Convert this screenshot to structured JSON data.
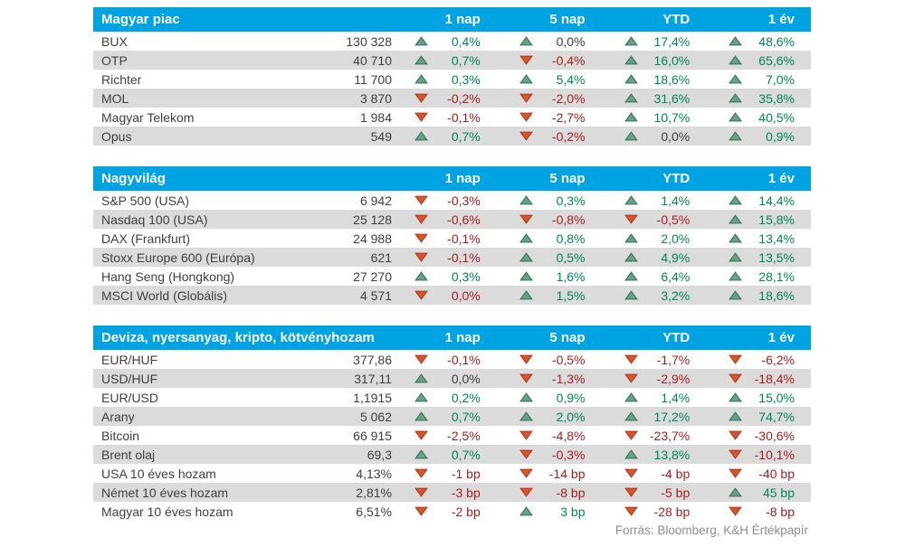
{
  "source_note": "Forrás: Bloomberg, K&H Értékpapír",
  "colors": {
    "header_bg": "#00A3E2",
    "stripe": "#DBDBDB",
    "text": "#3F3F3F",
    "positive_text": "#00855C",
    "negative_text": "#A31F1F",
    "neutral_text": "#3F3F3F",
    "arrow_up_fill": "#67A287",
    "arrow_up_stroke": "#336F55",
    "arrow_down_fill": "#D6552F",
    "arrow_down_stroke": "#AF3517",
    "source_text": "#8E8E8E"
  },
  "chart_data": [
    {
      "type": "table",
      "title": "Magyar piac",
      "columns": [
        "1 nap",
        "5 nap",
        "YTD",
        "1 év"
      ],
      "rows": [
        {
          "name": "BUX",
          "value": "130 328",
          "changes": [
            {
              "dir": "up",
              "text": "0,4%",
              "tone": "pos"
            },
            {
              "dir": "up",
              "text": "0,0%",
              "tone": "neutral"
            },
            {
              "dir": "up",
              "text": "17,4%",
              "tone": "pos"
            },
            {
              "dir": "up",
              "text": "48,6%",
              "tone": "pos"
            }
          ]
        },
        {
          "name": "OTP",
          "value": "40 710",
          "changes": [
            {
              "dir": "up",
              "text": "0,7%",
              "tone": "pos"
            },
            {
              "dir": "down",
              "text": "-0,4%",
              "tone": "neg"
            },
            {
              "dir": "up",
              "text": "16,0%",
              "tone": "pos"
            },
            {
              "dir": "up",
              "text": "65,6%",
              "tone": "pos"
            }
          ]
        },
        {
          "name": "Richter",
          "value": "11 700",
          "changes": [
            {
              "dir": "up",
              "text": "0,3%",
              "tone": "pos"
            },
            {
              "dir": "up",
              "text": "5,4%",
              "tone": "pos"
            },
            {
              "dir": "up",
              "text": "18,6%",
              "tone": "pos"
            },
            {
              "dir": "up",
              "text": "7,0%",
              "tone": "pos"
            }
          ]
        },
        {
          "name": "MOL",
          "value": "3 870",
          "changes": [
            {
              "dir": "down",
              "text": "-0,2%",
              "tone": "neg"
            },
            {
              "dir": "down",
              "text": "-2,0%",
              "tone": "neg"
            },
            {
              "dir": "up",
              "text": "31,6%",
              "tone": "pos"
            },
            {
              "dir": "up",
              "text": "35,8%",
              "tone": "pos"
            }
          ]
        },
        {
          "name": "Magyar Telekom",
          "value": "1 984",
          "changes": [
            {
              "dir": "down",
              "text": "-0,1%",
              "tone": "neg"
            },
            {
              "dir": "down",
              "text": "-2,7%",
              "tone": "neg"
            },
            {
              "dir": "up",
              "text": "10,7%",
              "tone": "pos"
            },
            {
              "dir": "up",
              "text": "40,5%",
              "tone": "pos"
            }
          ]
        },
        {
          "name": "Opus",
          "value": "549",
          "changes": [
            {
              "dir": "up",
              "text": "0,7%",
              "tone": "pos"
            },
            {
              "dir": "down",
              "text": "-0,2%",
              "tone": "neg"
            },
            {
              "dir": "up",
              "text": "0,0%",
              "tone": "neutral"
            },
            {
              "dir": "up",
              "text": "0,9%",
              "tone": "pos"
            }
          ]
        }
      ]
    },
    {
      "type": "table",
      "title": "Nagyvilág",
      "columns": [
        "1 nap",
        "5 nap",
        "YTD",
        "1 év"
      ],
      "rows": [
        {
          "name": "S&P 500 (USA)",
          "value": "6 942",
          "changes": [
            {
              "dir": "down",
              "text": "-0,3%",
              "tone": "neg"
            },
            {
              "dir": "up",
              "text": "0,3%",
              "tone": "pos"
            },
            {
              "dir": "up",
              "text": "1,4%",
              "tone": "pos"
            },
            {
              "dir": "up",
              "text": "14,4%",
              "tone": "pos"
            }
          ]
        },
        {
          "name": "Nasdaq 100 (USA)",
          "value": "25 128",
          "changes": [
            {
              "dir": "down",
              "text": "-0,6%",
              "tone": "neg"
            },
            {
              "dir": "down",
              "text": "-0,8%",
              "tone": "neg"
            },
            {
              "dir": "down",
              "text": "-0,5%",
              "tone": "neg"
            },
            {
              "dir": "up",
              "text": "15,8%",
              "tone": "pos"
            }
          ]
        },
        {
          "name": "DAX (Frankfurt)",
          "value": "24 988",
          "changes": [
            {
              "dir": "down",
              "text": "-0,1%",
              "tone": "neg"
            },
            {
              "dir": "up",
              "text": "0,8%",
              "tone": "pos"
            },
            {
              "dir": "up",
              "text": "2,0%",
              "tone": "pos"
            },
            {
              "dir": "up",
              "text": "13,4%",
              "tone": "pos"
            }
          ]
        },
        {
          "name": "Stoxx Europe 600 (Európa)",
          "value": "621",
          "changes": [
            {
              "dir": "down",
              "text": "-0,1%",
              "tone": "neg"
            },
            {
              "dir": "up",
              "text": "0,5%",
              "tone": "pos"
            },
            {
              "dir": "up",
              "text": "4,9%",
              "tone": "pos"
            },
            {
              "dir": "up",
              "text": "13,5%",
              "tone": "pos"
            }
          ]
        },
        {
          "name": "Hang Seng (Hongkong)",
          "value": "27 270",
          "changes": [
            {
              "dir": "up",
              "text": "0,3%",
              "tone": "pos"
            },
            {
              "dir": "up",
              "text": "1,6%",
              "tone": "pos"
            },
            {
              "dir": "up",
              "text": "6,4%",
              "tone": "pos"
            },
            {
              "dir": "up",
              "text": "28,1%",
              "tone": "pos"
            }
          ]
        },
        {
          "name": "MSCI World (Globális)",
          "value": "4 571",
          "changes": [
            {
              "dir": "down",
              "text": "0,0%",
              "tone": "neg"
            },
            {
              "dir": "up",
              "text": "1,5%",
              "tone": "pos"
            },
            {
              "dir": "up",
              "text": "3,2%",
              "tone": "pos"
            },
            {
              "dir": "up",
              "text": "18,6%",
              "tone": "pos"
            }
          ]
        }
      ]
    },
    {
      "type": "table",
      "title": "Deviza, nyersanyag, kripto, kötvényhozam",
      "columns": [
        "1 nap",
        "5 nap",
        "YTD",
        "1 év"
      ],
      "rows": [
        {
          "name": "EUR/HUF",
          "value": "377,86",
          "changes": [
            {
              "dir": "down",
              "text": "-0,1%",
              "tone": "neg"
            },
            {
              "dir": "down",
              "text": "-0,5%",
              "tone": "neg"
            },
            {
              "dir": "down",
              "text": "-1,7%",
              "tone": "neg"
            },
            {
              "dir": "down",
              "text": "-6,2%",
              "tone": "neg"
            }
          ]
        },
        {
          "name": "USD/HUF",
          "value": "317,11",
          "changes": [
            {
              "dir": "up",
              "text": "0,0%",
              "tone": "neutral"
            },
            {
              "dir": "down",
              "text": "-1,3%",
              "tone": "neg"
            },
            {
              "dir": "down",
              "text": "-2,9%",
              "tone": "neg"
            },
            {
              "dir": "down",
              "text": "-18,4%",
              "tone": "neg"
            }
          ]
        },
        {
          "name": "EUR/USD",
          "value": "1,1915",
          "changes": [
            {
              "dir": "up",
              "text": "0,2%",
              "tone": "pos"
            },
            {
              "dir": "up",
              "text": "0,9%",
              "tone": "pos"
            },
            {
              "dir": "up",
              "text": "1,4%",
              "tone": "pos"
            },
            {
              "dir": "up",
              "text": "15,0%",
              "tone": "pos"
            }
          ]
        },
        {
          "name": "Arany",
          "value": "5 062",
          "changes": [
            {
              "dir": "up",
              "text": "0,7%",
              "tone": "pos"
            },
            {
              "dir": "up",
              "text": "2,0%",
              "tone": "pos"
            },
            {
              "dir": "up",
              "text": "17,2%",
              "tone": "pos"
            },
            {
              "dir": "up",
              "text": "74,7%",
              "tone": "pos"
            }
          ]
        },
        {
          "name": "Bitcoin",
          "value": "66 915",
          "changes": [
            {
              "dir": "down",
              "text": "-2,5%",
              "tone": "neg"
            },
            {
              "dir": "down",
              "text": "-4,8%",
              "tone": "neg"
            },
            {
              "dir": "down",
              "text": "-23,7%",
              "tone": "neg"
            },
            {
              "dir": "down",
              "text": "-30,6%",
              "tone": "neg"
            }
          ]
        },
        {
          "name": "Brent olaj",
          "value": "69,3",
          "changes": [
            {
              "dir": "up",
              "text": "0,7%",
              "tone": "pos"
            },
            {
              "dir": "down",
              "text": "-0,3%",
              "tone": "neg"
            },
            {
              "dir": "up",
              "text": "13,8%",
              "tone": "pos"
            },
            {
              "dir": "down",
              "text": "-10,1%",
              "tone": "neg"
            }
          ]
        },
        {
          "name": "USA 10 éves hozam",
          "value": "4,13%",
          "changes": [
            {
              "dir": "down",
              "text": "-1 bp",
              "tone": "neg"
            },
            {
              "dir": "down",
              "text": "-14 bp",
              "tone": "neg"
            },
            {
              "dir": "down",
              "text": "-4 bp",
              "tone": "neg"
            },
            {
              "dir": "down",
              "text": "-40 bp",
              "tone": "neg"
            }
          ]
        },
        {
          "name": "Német 10 éves hozam",
          "value": "2,81%",
          "changes": [
            {
              "dir": "down",
              "text": "-3 bp",
              "tone": "neg"
            },
            {
              "dir": "down",
              "text": "-8 bp",
              "tone": "neg"
            },
            {
              "dir": "down",
              "text": "-5 bp",
              "tone": "neg"
            },
            {
              "dir": "up",
              "text": "45 bp",
              "tone": "pos"
            }
          ]
        },
        {
          "name": "Magyar 10 éves hozam",
          "value": "6,51%",
          "changes": [
            {
              "dir": "down",
              "text": "-2 bp",
              "tone": "neg"
            },
            {
              "dir": "up",
              "text": "3 bp",
              "tone": "pos"
            },
            {
              "dir": "down",
              "text": "-28 bp",
              "tone": "neg"
            },
            {
              "dir": "down",
              "text": "-8 bp",
              "tone": "neg"
            }
          ]
        }
      ]
    }
  ]
}
